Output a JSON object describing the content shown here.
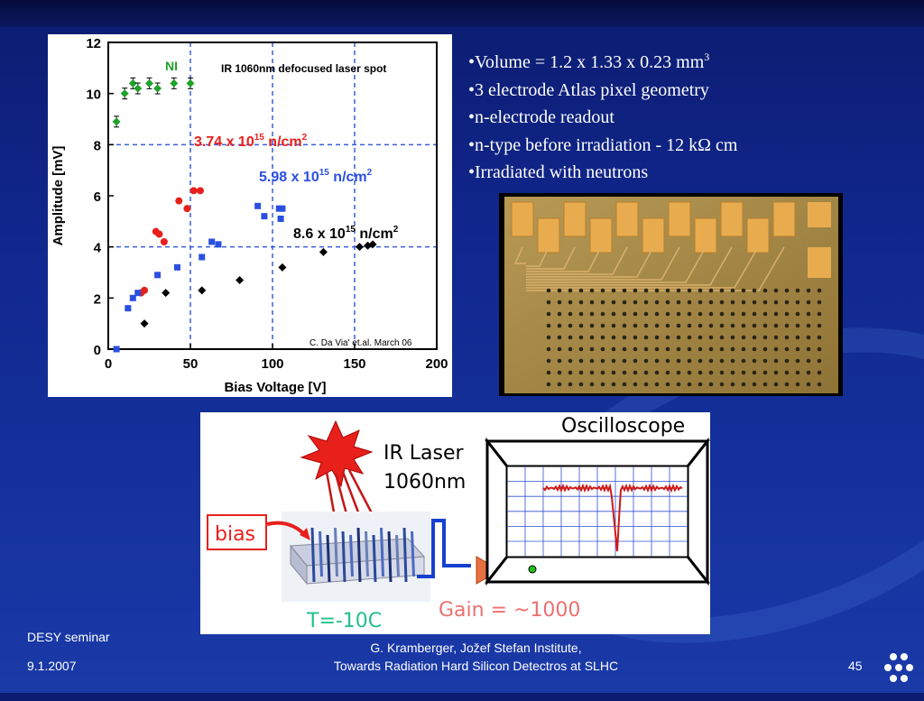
{
  "slide": {
    "bullets": [
      {
        "text": "•Volume = 1.2 x 1.33 x 0.23 mm",
        "sup": "3"
      },
      {
        "text": "•3 electrode Atlas pixel geometry",
        "sup": ""
      },
      {
        "text": "•n-electrode readout",
        "sup": ""
      },
      {
        "text": "•n-type before irradiation - 12 kΩ cm",
        "sup": ""
      },
      {
        "text": "•Irradiated with neutrons",
        "sup": ""
      }
    ],
    "footer": {
      "left_line1": "DESY seminar",
      "left_line2": "9.1.2007",
      "center_line1": "G. Kramberger, Jožef Stefan Institute,",
      "center_line2": "Towards Radiation Hard Silicon Detectros at SLHC",
      "page": "45"
    }
  },
  "chart_data": {
    "type": "scatter",
    "title": "IR 1060nm defocused laser spot",
    "xlabel": "Bias Voltage [V]",
    "ylabel": "Amplitude [mV]",
    "xlim": [
      0,
      200
    ],
    "ylim": [
      0,
      12
    ],
    "xticks": [
      "0",
      "50",
      "100",
      "150",
      "200"
    ],
    "yticks": [
      "0",
      "2",
      "4",
      "6",
      "8",
      "10",
      "12"
    ],
    "grid": true,
    "credit": "C. Da Via' et.al. March 06",
    "series": [
      {
        "name": "NI",
        "color": "#1fa12a",
        "marker": "diamond",
        "errorbars": true,
        "x": [
          5,
          10,
          15,
          18,
          25,
          30,
          40,
          50
        ],
        "y": [
          8.9,
          10.0,
          10.4,
          10.2,
          10.4,
          10.2,
          10.4,
          10.4
        ]
      },
      {
        "name": "3.74 x 10^15 n/cm^2",
        "color": "#e8201c",
        "marker": "circle",
        "x": [
          20,
          22,
          29,
          31,
          34,
          43,
          48,
          52,
          56
        ],
        "y": [
          2.2,
          2.3,
          4.6,
          4.5,
          4.2,
          5.8,
          5.5,
          6.2,
          6.2
        ]
      },
      {
        "name": "5.98 x 10^15 n/cm^2",
        "color": "#2a4fe0",
        "marker": "square",
        "x": [
          5,
          12,
          15,
          18,
          30,
          42,
          57,
          63,
          67,
          91,
          95,
          104,
          105,
          106
        ],
        "y": [
          0.0,
          1.6,
          2.0,
          2.2,
          2.9,
          3.2,
          3.6,
          4.2,
          4.1,
          5.6,
          5.2,
          5.5,
          5.1,
          5.5
        ]
      },
      {
        "name": "8.6 x 10^15 n/cm^2",
        "color": "#000000",
        "marker": "diamond",
        "x": [
          22,
          35,
          57,
          80,
          106,
          131,
          153,
          158,
          161
        ],
        "y": [
          1.0,
          2.2,
          2.3,
          2.7,
          3.2,
          3.8,
          4.0,
          4.05,
          4.1
        ]
      }
    ],
    "labels": {
      "ni": "NI",
      "s1_base": "3.74 x 10",
      "s1_exp": "15",
      "s1_unit": " n/cm",
      "s1_unit_exp": "2",
      "s2_base": "5.98 x 10",
      "s2_exp": "15",
      "s2_unit": " n/cm",
      "s2_unit_exp": "2",
      "s3_base": "8.6 x 10",
      "s3_exp": "15",
      "s3_unit": " n/cm",
      "s3_unit_exp": "2"
    }
  },
  "setup": {
    "oscilloscope": "Oscilloscope",
    "laser_line1": "IR Laser",
    "laser_line2": "1060nm",
    "bias": "bias",
    "temperature": "T=-10C",
    "gain": "Gain = ~1000"
  },
  "colors": {
    "accent": "#e8201c",
    "green": "#22c08c",
    "gain": "#ec7070",
    "blue_arrow": "#1540d0"
  }
}
